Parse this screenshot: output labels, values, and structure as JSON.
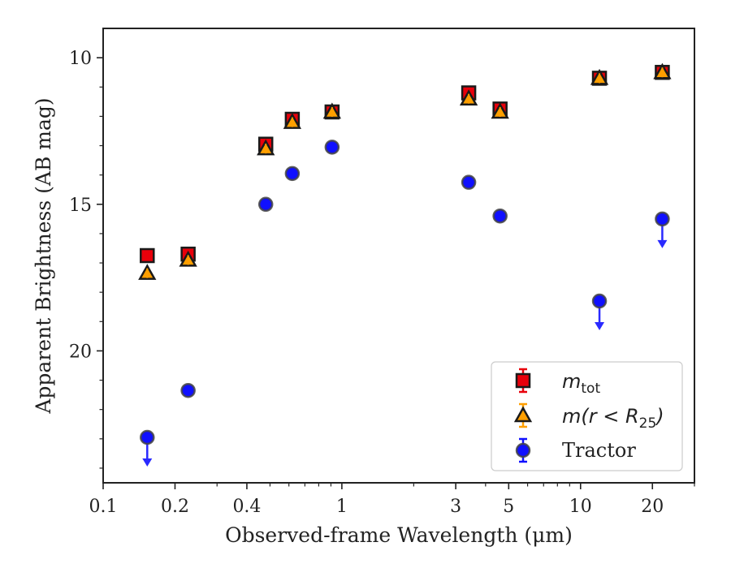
{
  "chart_data": {
    "type": "scatter",
    "xlabel": "Observed-frame Wavelength (μm)",
    "ylabel": "Apparent Brightness (AB mag)",
    "x_scale": "log",
    "xlim": [
      0.1,
      30
    ],
    "ylim": [
      24.5,
      9.0
    ],
    "y_inverted": true,
    "x_ticks": [
      {
        "value": 0.1,
        "label": "0.1"
      },
      {
        "value": 0.2,
        "label": "0.2"
      },
      {
        "value": 0.4,
        "label": "0.4"
      },
      {
        "value": 1,
        "label": "1"
      },
      {
        "value": 3,
        "label": "3"
      },
      {
        "value": 5,
        "label": "5"
      },
      {
        "value": 10,
        "label": "10"
      },
      {
        "value": 20,
        "label": "20"
      }
    ],
    "x_minor_ticks": [
      0.3,
      0.5,
      0.6,
      0.7,
      0.8,
      0.9,
      2,
      4,
      6,
      7,
      8,
      9,
      30
    ],
    "y_ticks": [
      {
        "value": 10,
        "label": "10"
      },
      {
        "value": 15,
        "label": "15"
      },
      {
        "value": 20,
        "label": "20"
      }
    ],
    "y_minor_ticks": [
      11,
      12,
      13,
      14,
      16,
      17,
      18,
      19,
      21,
      22,
      23,
      24
    ],
    "grid": false,
    "legend_position": "bottom-right",
    "series": [
      {
        "key": "m_tot",
        "name": "m_tot",
        "marker": "square",
        "face_color": "#e8000b",
        "edge_color": "#1a1a1a",
        "errorbar_color": "#e8000b",
        "points": [
          {
            "x": 0.153,
            "y": 16.75
          },
          {
            "x": 0.227,
            "y": 16.7
          },
          {
            "x": 0.48,
            "y": 12.95
          },
          {
            "x": 0.62,
            "y": 12.1
          },
          {
            "x": 0.91,
            "y": 11.85
          },
          {
            "x": 3.4,
            "y": 11.2
          },
          {
            "x": 4.6,
            "y": 11.75
          },
          {
            "x": 12.0,
            "y": 10.7
          },
          {
            "x": 22.0,
            "y": 10.5
          }
        ]
      },
      {
        "key": "m_r25",
        "name": "m(r < R25)",
        "marker": "triangle",
        "face_color": "#ff9f00",
        "edge_color": "#1a1a1a",
        "errorbar_color": "#ff9f00",
        "points": [
          {
            "x": 0.153,
            "y": 17.35
          },
          {
            "x": 0.227,
            "y": 16.9
          },
          {
            "x": 0.48,
            "y": 13.1
          },
          {
            "x": 0.62,
            "y": 12.2
          },
          {
            "x": 0.91,
            "y": 11.85
          },
          {
            "x": 3.4,
            "y": 11.4
          },
          {
            "x": 4.6,
            "y": 11.85
          },
          {
            "x": 12.0,
            "y": 10.7
          },
          {
            "x": 22.0,
            "y": 10.5
          }
        ]
      },
      {
        "key": "tractor",
        "name": "Tractor",
        "marker": "circle",
        "face_color": "#1010ff",
        "edge_color": "#444444",
        "errorbar_color": "#1010ff",
        "points": [
          {
            "x": 0.153,
            "y": 22.95,
            "upper_limit": true
          },
          {
            "x": 0.227,
            "y": 21.35
          },
          {
            "x": 0.48,
            "y": 15.0
          },
          {
            "x": 0.62,
            "y": 13.95
          },
          {
            "x": 0.91,
            "y": 13.05
          },
          {
            "x": 3.4,
            "y": 14.25
          },
          {
            "x": 4.6,
            "y": 15.4
          },
          {
            "x": 12.0,
            "y": 18.3,
            "upper_limit": true
          },
          {
            "x": 22.0,
            "y": 15.5,
            "upper_limit": true
          }
        ]
      }
    ],
    "legend": [
      {
        "series_key": "m_tot",
        "math_main": "m",
        "math_sub": "tot"
      },
      {
        "series_key": "m_r25",
        "math_main": "m(r < R",
        "math_sub": "25",
        "math_tail": ")"
      },
      {
        "series_key": "tractor",
        "label": "Tractor"
      }
    ]
  }
}
